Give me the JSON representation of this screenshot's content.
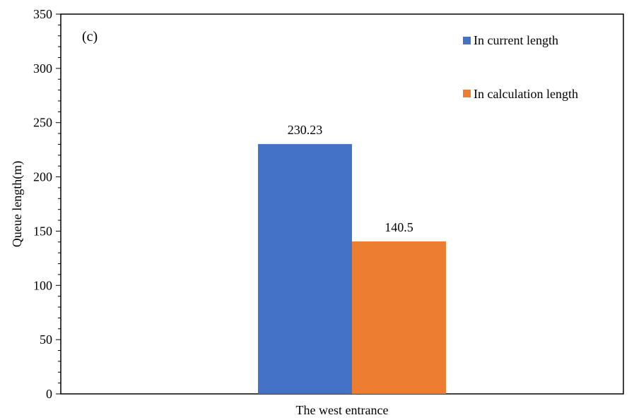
{
  "chart_data": {
    "type": "bar",
    "panel_label": "(c)",
    "categories": [
      "The west entrance"
    ],
    "series": [
      {
        "name": "In current length",
        "values": [
          230.23
        ],
        "color": "#4472c4"
      },
      {
        "name": "In calculation length",
        "values": [
          140.5
        ],
        "color": "#ed7d31"
      }
    ],
    "data_labels": [
      "230.23",
      "140.5"
    ],
    "xlabel": "",
    "ylabel": "Queue length(m)",
    "ylim": [
      0,
      350
    ],
    "yticks": [
      0,
      50,
      100,
      150,
      200,
      250,
      300,
      350
    ],
    "grid": false,
    "legend_position": "top-right"
  }
}
